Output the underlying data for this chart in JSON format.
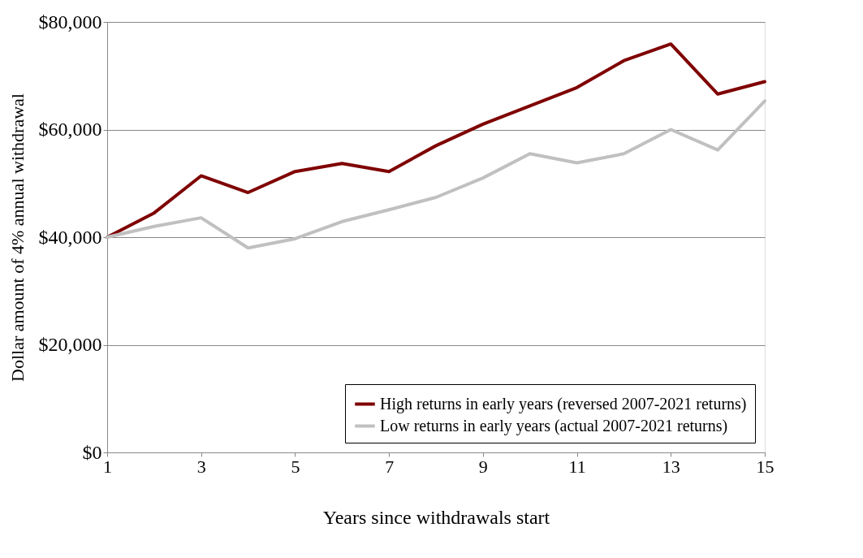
{
  "chart_data": {
    "type": "line",
    "xlabel": "Years since withdrawals start",
    "ylabel": "Dollar amount of 4% annual withdrawal",
    "x": [
      1,
      2,
      3,
      4,
      5,
      6,
      7,
      8,
      9,
      10,
      11,
      12,
      13,
      14,
      15
    ],
    "series": [
      {
        "name": "High returns in early years (reversed 2007-2021 returns)",
        "color": "#7f0000",
        "values": [
          40000,
          44500,
          51400,
          48300,
          52200,
          53700,
          52200,
          57000,
          61000,
          64400,
          67800,
          72800,
          75900,
          66600,
          68900
        ]
      },
      {
        "name": "Low returns in early years (actual 2007-2021 returns)",
        "color": "#c0c0c0",
        "values": [
          40000,
          42000,
          43600,
          38000,
          39700,
          42900,
          45100,
          47400,
          51000,
          55500,
          53800,
          55500,
          60000,
          56200,
          65300
        ]
      }
    ],
    "xlim": [
      1,
      15
    ],
    "xticks": [
      1,
      3,
      5,
      7,
      9,
      11,
      13,
      15
    ],
    "ylim": [
      0,
      80000
    ],
    "yticks": [
      {
        "value": 0,
        "label": "$0"
      },
      {
        "value": 20000,
        "label": "$20,000"
      },
      {
        "value": 40000,
        "label": "$40,000"
      },
      {
        "value": 60000,
        "label": "$60,000"
      },
      {
        "value": 80000,
        "label": "$80,000"
      }
    ],
    "grid": "y",
    "legend": "bottom right",
    "marker": "none",
    "line_style": "solid"
  }
}
